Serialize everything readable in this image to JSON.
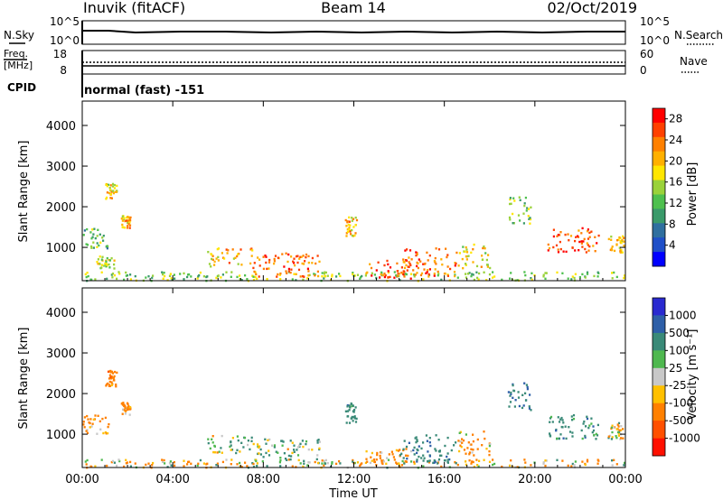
{
  "header": {
    "station": "Inuvik (fitACF)",
    "beam": "Beam 14",
    "date": "02/Oct/2019"
  },
  "meta_panels": {
    "nsky_label": "N.Sky",
    "nsearch_label": "N.Search",
    "noise_ticks": [
      "10^5",
      "10^0"
    ],
    "freq_label_line1": "Freq.",
    "freq_label_line2": "[MHz]",
    "freq_ticks": [
      "18",
      "8"
    ],
    "nave_label": "Nave",
    "nave_ticks": [
      "60",
      "0"
    ],
    "cpid_label": "CPID",
    "cpid_value": "normal (fast) -151"
  },
  "chart_data": [
    {
      "type": "heatmap",
      "title": "Power",
      "xlabel": "Time UT",
      "ylabel": "Slant Range [km]",
      "x_ticks": [
        "00:00",
        "04:00",
        "08:00",
        "12:00",
        "16:00",
        "20:00",
        "00:00"
      ],
      "xlim_hours": [
        0,
        24
      ],
      "ylim": [
        180,
        4600
      ],
      "y_ticks": [
        1000,
        2000,
        3000,
        4000
      ],
      "colorbar": {
        "label": "Power [dB]",
        "ticks": [
          "4",
          "8",
          "12",
          "16",
          "20",
          "24",
          "28"
        ],
        "range": [
          0,
          30
        ],
        "colors": [
          "#0000ff",
          "#1f4fc8",
          "#2f6f9f",
          "#3a9a6a",
          "#4ec04e",
          "#9ad23a",
          "#ffe600",
          "#ffb000",
          "#ff8000",
          "#ff4000",
          "#ff0000"
        ]
      },
      "clusters": [
        {
          "t0": 0.0,
          "t1": 24.0,
          "r0": 200,
          "r1": 420,
          "value": 14
        },
        {
          "t0": 0.0,
          "t1": 1.2,
          "r0": 1000,
          "r1": 1500,
          "value": 12
        },
        {
          "t0": 1.0,
          "t1": 1.5,
          "r0": 2200,
          "r1": 2600,
          "value": 18
        },
        {
          "t0": 1.7,
          "t1": 2.1,
          "r0": 1500,
          "r1": 1800,
          "value": 20
        },
        {
          "t0": 0.6,
          "t1": 1.4,
          "r0": 500,
          "r1": 800,
          "value": 16
        },
        {
          "t0": 5.5,
          "t1": 7.5,
          "r0": 550,
          "r1": 1000,
          "value": 20
        },
        {
          "t0": 7.5,
          "t1": 10.5,
          "r0": 300,
          "r1": 900,
          "value": 24
        },
        {
          "t0": 11.6,
          "t1": 12.1,
          "r0": 1300,
          "r1": 1800,
          "value": 20
        },
        {
          "t0": 12.5,
          "t1": 14.5,
          "r0": 250,
          "r1": 700,
          "value": 26
        },
        {
          "t0": 14.0,
          "t1": 16.5,
          "r0": 300,
          "r1": 1000,
          "value": 24
        },
        {
          "t0": 16.5,
          "t1": 18.0,
          "r0": 500,
          "r1": 1100,
          "value": 18
        },
        {
          "t0": 18.8,
          "t1": 19.8,
          "r0": 1600,
          "r1": 2300,
          "value": 14
        },
        {
          "t0": 20.5,
          "t1": 22.8,
          "r0": 900,
          "r1": 1500,
          "value": 26
        },
        {
          "t0": 23.2,
          "t1": 23.9,
          "r0": 900,
          "r1": 1300,
          "value": 18
        }
      ]
    },
    {
      "type": "heatmap",
      "title": "Velocity",
      "xlabel": "Time UT",
      "ylabel": "Slant Range [km]",
      "x_ticks": [
        "00:00",
        "04:00",
        "08:00",
        "12:00",
        "16:00",
        "20:00",
        "00:00"
      ],
      "xlim_hours": [
        0,
        24
      ],
      "ylim": [
        180,
        4600
      ],
      "y_ticks": [
        1000,
        2000,
        3000,
        4000
      ],
      "colorbar": {
        "label": "Velocity [m s⁻¹]",
        "ticks": [
          "1000",
          "500",
          "100",
          "25",
          "-25",
          "-100",
          "-500",
          "-1000"
        ],
        "colors": [
          "#2a2ad0",
          "#2e5fa8",
          "#3a8a78",
          "#4fb84f",
          "#c8c8c8",
          "#ffc000",
          "#ff8000",
          "#ff5000",
          "#ff1000"
        ]
      },
      "clusters": [
        {
          "t0": 0.0,
          "t1": 24.0,
          "r0": 200,
          "r1": 400,
          "value": -80
        },
        {
          "t0": 0.0,
          "t1": 1.2,
          "r0": 1000,
          "r1": 1500,
          "value": -200
        },
        {
          "t0": 1.0,
          "t1": 1.5,
          "r0": 2200,
          "r1": 2600,
          "value": -300
        },
        {
          "t0": 1.7,
          "t1": 2.1,
          "r0": 1500,
          "r1": 1800,
          "value": -200
        },
        {
          "t0": 5.5,
          "t1": 7.5,
          "r0": 550,
          "r1": 1000,
          "value": 80
        },
        {
          "t0": 7.5,
          "t1": 10.5,
          "r0": 300,
          "r1": 900,
          "value": 120
        },
        {
          "t0": 11.6,
          "t1": 12.1,
          "r0": 1300,
          "r1": 1800,
          "value": 300
        },
        {
          "t0": 12.5,
          "t1": 14.5,
          "r0": 250,
          "r1": 700,
          "value": -200
        },
        {
          "t0": 14.0,
          "t1": 16.5,
          "r0": 300,
          "r1": 1000,
          "value": 400
        },
        {
          "t0": 16.5,
          "t1": 18.0,
          "r0": 500,
          "r1": 1100,
          "value": -150
        },
        {
          "t0": 18.8,
          "t1": 19.8,
          "r0": 1600,
          "r1": 2300,
          "value": 500
        },
        {
          "t0": 20.5,
          "t1": 22.8,
          "r0": 900,
          "r1": 1500,
          "value": 300
        },
        {
          "t0": 23.2,
          "t1": 23.9,
          "r0": 900,
          "r1": 1300,
          "value": 0
        }
      ]
    }
  ]
}
